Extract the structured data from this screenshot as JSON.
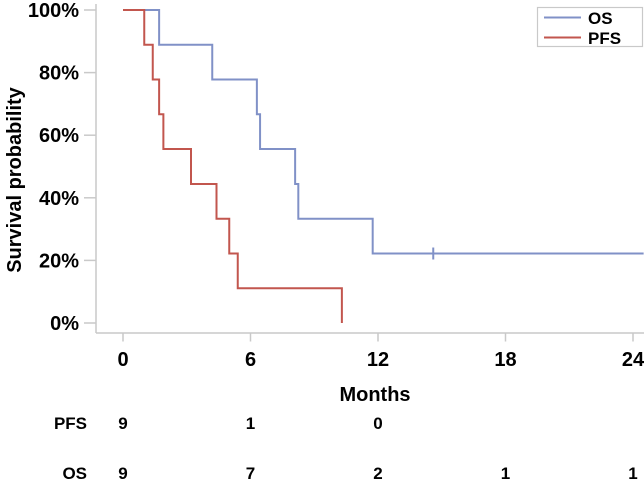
{
  "figure": {
    "background": "#ffffff"
  },
  "axes": {
    "y_title": "Survival probability",
    "x_title": "Months",
    "y_ticks": [
      "100%",
      "80%",
      "60%",
      "40%",
      "20%",
      "0%"
    ],
    "y_tick_values": [
      100,
      80,
      60,
      40,
      20,
      0
    ],
    "x_ticks": [
      "0",
      "6",
      "12",
      "18",
      "24"
    ],
    "x_tick_values": [
      0,
      6,
      12,
      18,
      24
    ],
    "axis_color": "#c9c9c9"
  },
  "legend": {
    "position": "top-right",
    "items": [
      {
        "label": "OS",
        "color": "#8091c7"
      },
      {
        "label": "PFS",
        "color": "#c2564e"
      }
    ]
  },
  "chart_data": {
    "type": "line",
    "subtype": "kaplan-meier-step",
    "title": "",
    "xlabel": "Months",
    "ylabel": "Survival probability",
    "xlim": [
      0,
      24.5
    ],
    "ylim": [
      0,
      100
    ],
    "grid": false,
    "legend_position": "top-right",
    "series": [
      {
        "name": "OS",
        "color": "#8091c7",
        "steps_note": "each point = [month of event, survival % after event]; curve starts at 100%",
        "steps": [
          [
            0,
            100
          ],
          [
            1.7,
            88.9
          ],
          [
            4.2,
            77.8
          ],
          [
            6.3,
            66.7
          ],
          [
            6.45,
            55.6
          ],
          [
            8.1,
            44.4
          ],
          [
            8.25,
            33.3
          ],
          [
            11.75,
            22.2
          ]
        ],
        "end_x": 24.5,
        "censors": [
          {
            "x": 14.6,
            "y": 22.2
          }
        ]
      },
      {
        "name": "PFS",
        "color": "#c2564e",
        "steps": [
          [
            0,
            100
          ],
          [
            1.0,
            88.9
          ],
          [
            1.4,
            77.8
          ],
          [
            1.7,
            66.7
          ],
          [
            1.9,
            55.6
          ],
          [
            3.2,
            44.4
          ],
          [
            4.4,
            33.3
          ],
          [
            5.0,
            22.2
          ],
          [
            5.4,
            11.1
          ],
          [
            10.3,
            0
          ]
        ],
        "end_x": 10.3,
        "censors": []
      }
    ]
  },
  "risk_table": {
    "rows": [
      {
        "label": "PFS",
        "color": "#b23a31",
        "months": [
          0,
          6,
          12
        ],
        "values": [
          "9",
          "1",
          "0"
        ]
      },
      {
        "label": "OS",
        "color": "#3d5dac",
        "months": [
          0,
          6,
          12,
          18,
          24
        ],
        "values": [
          "9",
          "7",
          "2",
          "1",
          "1"
        ]
      }
    ]
  }
}
